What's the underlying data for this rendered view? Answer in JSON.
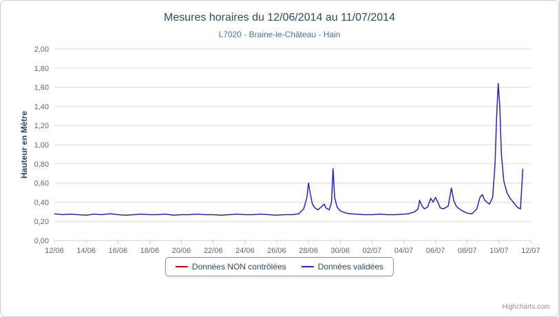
{
  "credit": "Highcharts.com",
  "chart_data": {
    "type": "line",
    "title": "Mesures horaires du 12/06/2014 au 11/07/2014",
    "subtitle": "L7020 - Braine-le-Château - Hain",
    "ylabel": "Hauteur en Mètre",
    "ylim": [
      0,
      2
    ],
    "xlim": [
      0,
      30
    ],
    "grid": true,
    "legend_position": "bottom-center",
    "yticks": [
      {
        "value": 0.0,
        "label": "0,00"
      },
      {
        "value": 0.2,
        "label": "0,20"
      },
      {
        "value": 0.4,
        "label": "0,40"
      },
      {
        "value": 0.6,
        "label": "0,60"
      },
      {
        "value": 0.8,
        "label": "0,80"
      },
      {
        "value": 1.0,
        "label": "1,00"
      },
      {
        "value": 1.2,
        "label": "1,20"
      },
      {
        "value": 1.4,
        "label": "1,40"
      },
      {
        "value": 1.6,
        "label": "1,60"
      },
      {
        "value": 1.8,
        "label": "1,80"
      },
      {
        "value": 2.0,
        "label": "2,00"
      }
    ],
    "xticks": [
      {
        "value": 0,
        "label": "12/06"
      },
      {
        "value": 2,
        "label": "14/06"
      },
      {
        "value": 4,
        "label": "16/06"
      },
      {
        "value": 6,
        "label": "18/06"
      },
      {
        "value": 8,
        "label": "20/06"
      },
      {
        "value": 10,
        "label": "22/06"
      },
      {
        "value": 12,
        "label": "24/06"
      },
      {
        "value": 14,
        "label": "26/06"
      },
      {
        "value": 16,
        "label": "28/06"
      },
      {
        "value": 18,
        "label": "30/06"
      },
      {
        "value": 20,
        "label": "02/07"
      },
      {
        "value": 22,
        "label": "04/07"
      },
      {
        "value": 24,
        "label": "06/07"
      },
      {
        "value": 26,
        "label": "08/07"
      },
      {
        "value": 28,
        "label": "10/07"
      },
      {
        "value": 30,
        "label": "12/07"
      }
    ],
    "series": [
      {
        "name": "Données NON contrôlées",
        "color": "#cc0000",
        "points": []
      },
      {
        "name": "Données validées",
        "color": "#2222cc",
        "points": [
          [
            0,
            0.28
          ],
          [
            0.5,
            0.27
          ],
          [
            1,
            0.275
          ],
          [
            1.5,
            0.27
          ],
          [
            2,
            0.265
          ],
          [
            2.5,
            0.275
          ],
          [
            3,
            0.27
          ],
          [
            3.5,
            0.28
          ],
          [
            4,
            0.27
          ],
          [
            4.5,
            0.265
          ],
          [
            5,
            0.27
          ],
          [
            5.5,
            0.275
          ],
          [
            6,
            0.27
          ],
          [
            6.5,
            0.27
          ],
          [
            7,
            0.275
          ],
          [
            7.5,
            0.265
          ],
          [
            8,
            0.27
          ],
          [
            8.5,
            0.27
          ],
          [
            9,
            0.275
          ],
          [
            9.5,
            0.27
          ],
          [
            10,
            0.27
          ],
          [
            10.5,
            0.265
          ],
          [
            11,
            0.27
          ],
          [
            11.5,
            0.275
          ],
          [
            12,
            0.27
          ],
          [
            12.5,
            0.27
          ],
          [
            13,
            0.275
          ],
          [
            13.5,
            0.27
          ],
          [
            14,
            0.265
          ],
          [
            14.5,
            0.27
          ],
          [
            15,
            0.27
          ],
          [
            15.4,
            0.28
          ],
          [
            15.7,
            0.33
          ],
          [
            15.9,
            0.45
          ],
          [
            16,
            0.6
          ],
          [
            16.1,
            0.5
          ],
          [
            16.25,
            0.38
          ],
          [
            16.4,
            0.34
          ],
          [
            16.6,
            0.32
          ],
          [
            16.8,
            0.35
          ],
          [
            17,
            0.38
          ],
          [
            17.1,
            0.34
          ],
          [
            17.3,
            0.32
          ],
          [
            17.45,
            0.4
          ],
          [
            17.55,
            0.75
          ],
          [
            17.65,
            0.45
          ],
          [
            17.8,
            0.35
          ],
          [
            18,
            0.31
          ],
          [
            18.3,
            0.29
          ],
          [
            18.6,
            0.28
          ],
          [
            19,
            0.275
          ],
          [
            19.5,
            0.27
          ],
          [
            20,
            0.27
          ],
          [
            20.5,
            0.275
          ],
          [
            21,
            0.27
          ],
          [
            21.5,
            0.27
          ],
          [
            22,
            0.275
          ],
          [
            22.3,
            0.28
          ],
          [
            22.7,
            0.3
          ],
          [
            22.9,
            0.33
          ],
          [
            23,
            0.42
          ],
          [
            23.15,
            0.36
          ],
          [
            23.3,
            0.33
          ],
          [
            23.5,
            0.35
          ],
          [
            23.7,
            0.44
          ],
          [
            23.85,
            0.4
          ],
          [
            24,
            0.45
          ],
          [
            24.15,
            0.4
          ],
          [
            24.3,
            0.34
          ],
          [
            24.5,
            0.33
          ],
          [
            24.8,
            0.36
          ],
          [
            25,
            0.55
          ],
          [
            25.15,
            0.42
          ],
          [
            25.3,
            0.36
          ],
          [
            25.5,
            0.33
          ],
          [
            25.8,
            0.3
          ],
          [
            26,
            0.285
          ],
          [
            26.3,
            0.28
          ],
          [
            26.6,
            0.33
          ],
          [
            26.8,
            0.45
          ],
          [
            26.95,
            0.48
          ],
          [
            27.1,
            0.42
          ],
          [
            27.25,
            0.4
          ],
          [
            27.4,
            0.38
          ],
          [
            27.6,
            0.45
          ],
          [
            27.75,
            0.8
          ],
          [
            27.85,
            1.3
          ],
          [
            27.95,
            1.64
          ],
          [
            28.05,
            1.4
          ],
          [
            28.15,
            0.9
          ],
          [
            28.3,
            0.62
          ],
          [
            28.5,
            0.5
          ],
          [
            28.7,
            0.44
          ],
          [
            28.9,
            0.4
          ],
          [
            29,
            0.38
          ],
          [
            29.1,
            0.36
          ],
          [
            29.2,
            0.34
          ],
          [
            29.35,
            0.33
          ],
          [
            29.5,
            0.75
          ]
        ]
      }
    ]
  }
}
